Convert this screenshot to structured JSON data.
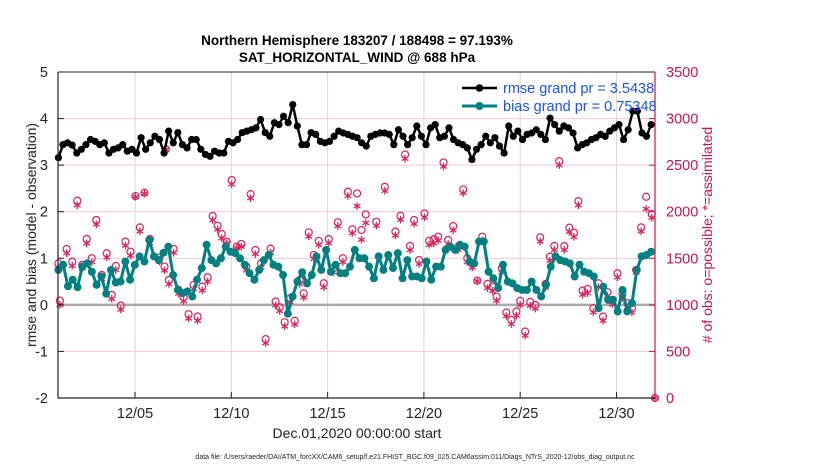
{
  "chart_data": {
    "type": "line",
    "title": "Northern Hemisphere 183207 / 188498 = 97.193%",
    "subtitle": "SAT_HORIZONTAL_WIND @ 688 hPa",
    "xlabel": "Dec.01,2020 00:00:00 start",
    "ylabel": "rmse and bias (model - observation)",
    "y2label": "# of obs: o=possible; *=assimilated",
    "footer": "data file: /Users/raeder/DAI/ATM_forcXX/CAM6_setup/f.e21.FHIST_BGC.f09_025.CAM6assim.011/Diags_NTrS_2020-12/obs_diag_output.nc",
    "xlim_days": [
      0,
      31
    ],
    "xticks": [
      {
        "day": 4,
        "label": "12/05"
      },
      {
        "day": 9,
        "label": "12/10"
      },
      {
        "day": 14,
        "label": "12/15"
      },
      {
        "day": 19,
        "label": "12/20"
      },
      {
        "day": 24,
        "label": "12/25"
      },
      {
        "day": 29,
        "label": "12/30"
      }
    ],
    "ylim": [
      -2,
      5
    ],
    "yticks": [
      "-2",
      "-1",
      "0",
      "1",
      "2",
      "3",
      "4",
      "5"
    ],
    "y2lim": [
      0,
      3500
    ],
    "y2ticks": [
      "0",
      "500",
      "1000",
      "1500",
      "2000",
      "2500",
      "3000",
      "3500"
    ],
    "grid": true,
    "legend_position": "top-right",
    "colors": {
      "rmse": "#000000",
      "bias": "#008080",
      "obs": "#e0205a",
      "axis2": "#d0104c",
      "legend_text": "#1a50ff"
    },
    "series": [
      {
        "name": "rmse grand pr = 3.5438",
        "key": "rmse",
        "values": [
          3.16,
          3.44,
          3.48,
          3.43,
          3.26,
          3.34,
          3.44,
          3.55,
          3.51,
          3.44,
          3.48,
          3.26,
          3.34,
          3.37,
          3.44,
          3.3,
          3.34,
          3.26,
          3.59,
          3.34,
          3.48,
          3.62,
          3.55,
          3.26,
          3.73,
          3.48,
          3.7,
          3.44,
          3.37,
          3.55,
          3.55,
          3.34,
          3.23,
          3.19,
          3.3,
          3.26,
          3.26,
          3.51,
          3.48,
          3.55,
          3.7,
          3.73,
          3.76,
          3.8,
          3.98,
          3.7,
          3.62,
          3.91,
          3.87,
          4.05,
          3.91,
          4.3,
          3.84,
          3.44,
          3.44,
          3.7,
          3.66,
          3.51,
          3.48,
          3.51,
          3.62,
          3.73,
          3.69,
          3.66,
          3.62,
          3.59,
          3.48,
          3.41,
          3.62,
          3.66,
          3.69,
          3.69,
          3.66,
          3.44,
          3.76,
          3.62,
          3.44,
          3.59,
          3.84,
          3.62,
          3.44,
          3.8,
          3.87,
          3.59,
          3.62,
          3.8,
          3.55,
          3.48,
          3.44,
          3.37,
          3.12,
          3.34,
          3.44,
          3.62,
          3.48,
          3.59,
          3.41,
          3.26,
          3.84,
          3.62,
          3.73,
          3.55,
          3.66,
          3.69,
          3.76,
          3.66,
          3.55,
          4.01,
          3.87,
          3.73,
          3.84,
          3.8,
          3.69,
          3.37,
          3.44,
          3.48,
          3.55,
          3.59,
          3.66,
          3.62,
          3.73,
          3.8,
          3.87,
          3.55,
          3.76,
          4.16,
          4.16,
          3.69,
          3.62,
          3.87
        ]
      },
      {
        "name": "bias grand pr = 0.75348",
        "key": "bias",
        "values": [
          0.75,
          0.86,
          0.4,
          0.54,
          0.38,
          0.82,
          0.89,
          0.71,
          0.43,
          0.61,
          0.24,
          0.75,
          0.48,
          0.5,
          0.93,
          0.54,
          0.86,
          1.04,
          0.93,
          1.39,
          1.04,
          0.96,
          1.12,
          1.25,
          0.64,
          0.32,
          0.25,
          0.29,
          0.18,
          0.54,
          0.79,
          1.29,
          0.96,
          0.89,
          1.0,
          1.25,
          1.14,
          1.11,
          1.0,
          0.86,
          0.68,
          0.54,
          0.75,
          0.96,
          1.07,
          0.86,
          0.82,
          0.64,
          -0.19,
          0.18,
          0.5,
          0.7,
          0.46,
          0.64,
          1.04,
          0.75,
          1.18,
          0.71,
          0.86,
          0.68,
          0.68,
          0.82,
          1.18,
          1.0,
          1.0,
          0.82,
          0.57,
          1.04,
          0.75,
          1.07,
          0.79,
          1.11,
          0.57,
          0.96,
          0.61,
          0.61,
          0.57,
          0.93,
          0.54,
          0.82,
          0.82,
          1.18,
          1.25,
          1.18,
          1.29,
          1.25,
          0.93,
          0.89,
          1.36,
          1.36,
          0.71,
          0.57,
          0.36,
          0.86,
          0.5,
          0.46,
          0.36,
          0.32,
          0.32,
          0.5,
          0.32,
          0.18,
          0.43,
          0.82,
          1.04,
          0.96,
          0.93,
          0.89,
          0.61,
          0.86,
          0.71,
          0.68,
          0.61,
          -0.07,
          0.39,
          0.11,
          0.11,
          -0.14,
          0.32,
          -0.14,
          0.04,
          0.75,
          1.04,
          1.07,
          1.14
        ]
      }
    ],
    "obs_columns": [
      "day",
      "possible",
      "assimilated"
    ],
    "obs": [
      [
        0.02,
        1446,
        1400
      ],
      [
        0.1,
        1046,
        1000
      ],
      [
        0.45,
        1600,
        1555
      ],
      [
        0.74,
        1464,
        1420
      ],
      [
        1.0,
        2118,
        2070
      ],
      [
        1.26,
        1429,
        1390
      ],
      [
        1.49,
        1707,
        1660
      ],
      [
        1.75,
        1500,
        1460
      ],
      [
        1.99,
        1911,
        1865
      ],
      [
        2.27,
        1321,
        1280
      ],
      [
        2.53,
        1554,
        1510
      ],
      [
        2.79,
        1107,
        1065
      ],
      [
        3.0,
        1418,
        1375
      ],
      [
        3.26,
        993,
        950
      ],
      [
        3.5,
        1679,
        1635
      ],
      [
        3.76,
        1571,
        1530
      ],
      [
        4.02,
        2168,
        2160
      ],
      [
        4.25,
        1832,
        1790
      ],
      [
        4.49,
        2204,
        2195
      ],
      [
        4.77,
        1707,
        1665
      ],
      [
        5.27,
        1507,
        1465
      ],
      [
        5.53,
        1411,
        1370
      ],
      [
        5.6,
        2670,
        2665
      ],
      [
        5.76,
        1268,
        1225
      ],
      [
        6.0,
        1600,
        1560
      ],
      [
        6.26,
        1161,
        1120
      ],
      [
        6.52,
        1082,
        1040
      ],
      [
        6.78,
        900,
        855
      ],
      [
        7.04,
        1214,
        1170
      ],
      [
        7.25,
        875,
        830
      ],
      [
        7.49,
        1196,
        1155
      ],
      [
        7.77,
        1296,
        1250
      ],
      [
        8.03,
        1954,
        1910
      ],
      [
        8.29,
        1850,
        1810
      ],
      [
        8.5,
        1761,
        1715
      ],
      [
        8.76,
        1679,
        1660
      ],
      [
        9.02,
        2339,
        2295
      ],
      [
        9.28,
        1625,
        1610
      ],
      [
        9.52,
        1654,
        1625
      ],
      [
        9.78,
        1411,
        1370
      ],
      [
        10.0,
        2189,
        2145
      ],
      [
        10.25,
        1589,
        1545
      ],
      [
        10.54,
        1446,
        1400
      ],
      [
        10.78,
        632,
        590
      ],
      [
        11.04,
        1604,
        1560
      ],
      [
        11.3,
        1036,
        995
      ],
      [
        11.51,
        975,
        935
      ],
      [
        11.77,
        814,
        770
      ],
      [
        12.05,
        1071,
        1030
      ],
      [
        12.29,
        829,
        790
      ],
      [
        12.55,
        1268,
        1225
      ],
      [
        12.76,
        1125,
        1080
      ],
      [
        13.02,
        1779,
        1735
      ],
      [
        13.28,
        1536,
        1495
      ],
      [
        13.54,
        1686,
        1645
      ],
      [
        13.8,
        1232,
        1190
      ],
      [
        14.06,
        1707,
        1665
      ],
      [
        14.29,
        1393,
        1350
      ],
      [
        14.53,
        1886,
        1845
      ],
      [
        14.79,
        1500,
        1460
      ],
      [
        15.05,
        2214,
        2170
      ],
      [
        15.28,
        1811,
        1770
      ],
      [
        15.53,
        2196,
        2060
      ],
      [
        15.76,
        1804,
        1700
      ],
      [
        15.98,
        1971,
        1880
      ],
      [
        16.53,
        1893,
        1850
      ],
      [
        16.97,
        2268,
        2225
      ],
      [
        17.52,
        1786,
        1745
      ],
      [
        17.78,
        1957,
        1915
      ],
      [
        18.02,
        2614,
        2570
      ],
      [
        18.28,
        1632,
        1590
      ],
      [
        18.49,
        1911,
        1870
      ],
      [
        18.75,
        1482,
        1440
      ],
      [
        19.03,
        1982,
        1940
      ],
      [
        19.27,
        1689,
        1645
      ],
      [
        19.51,
        1704,
        1660
      ],
      [
        19.74,
        1732,
        1690
      ],
      [
        20.02,
        2529,
        2485
      ],
      [
        20.26,
        1696,
        1655
      ],
      [
        20.52,
        1846,
        1800
      ],
      [
        20.78,
        1625,
        1590
      ],
      [
        21.04,
        2239,
        2200
      ],
      [
        21.25,
        1500,
        1460
      ],
      [
        21.51,
        1446,
        1400
      ],
      [
        21.77,
        1261,
        1255
      ],
      [
        22.03,
        1732,
        1690
      ],
      [
        22.3,
        1225,
        1180
      ],
      [
        22.56,
        1196,
        1150
      ],
      [
        22.78,
        1089,
        1045
      ],
      [
        23.04,
        1393,
        1350
      ],
      [
        23.28,
        918,
        880
      ],
      [
        23.54,
        839,
        795
      ],
      [
        23.8,
        929,
        885
      ],
      [
        24.0,
        1043,
        1000
      ],
      [
        24.26,
        714,
        670
      ],
      [
        24.52,
        1032,
        990
      ],
      [
        24.78,
        1000,
        960
      ],
      [
        25.04,
        1725,
        1680
      ],
      [
        25.32,
        1225,
        1185
      ],
      [
        25.54,
        1518,
        1475
      ],
      [
        25.77,
        1632,
        1590
      ],
      [
        26.03,
        2543,
        2500
      ],
      [
        26.29,
        1632,
        1590
      ],
      [
        26.55,
        1829,
        1785
      ],
      [
        26.79,
        1775,
        1730
      ],
      [
        27.02,
        2114,
        2070
      ],
      [
        27.24,
        1154,
        1110
      ],
      [
        27.5,
        1171,
        1125
      ],
      [
        27.8,
        964,
        920
      ],
      [
        28.06,
        1232,
        1190
      ],
      [
        28.3,
        875,
        830
      ],
      [
        28.53,
        1136,
        1095
      ],
      [
        28.79,
        1046,
        1005
      ],
      [
        29.05,
        1339,
        1295
      ],
      [
        29.31,
        1118,
        1075
      ],
      [
        29.57,
        1018,
        975
      ],
      [
        29.8,
        964,
        920
      ],
      [
        30.02,
        1375,
        1345
      ],
      [
        30.28,
        1832,
        1790
      ],
      [
        30.54,
        2161,
        2030
      ],
      [
        30.83,
        1975,
        1935
      ],
      [
        31,
        0,
        0
      ]
    ]
  }
}
